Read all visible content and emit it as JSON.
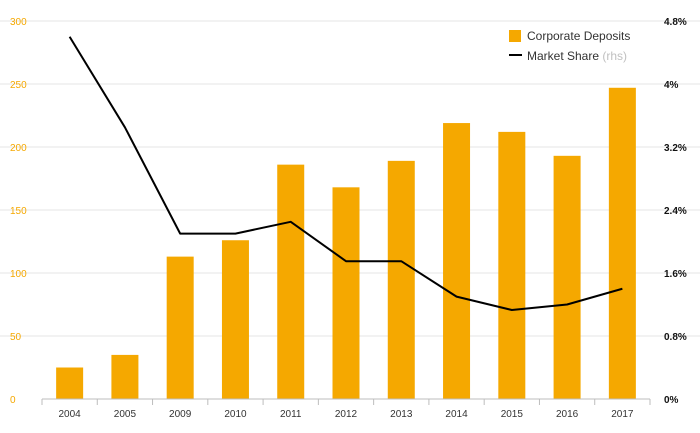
{
  "chart_data": {
    "type": "bar",
    "categories": [
      "2004",
      "2005",
      "2009",
      "2010",
      "2011",
      "2012",
      "2013",
      "2014",
      "2015",
      "2016",
      "2017"
    ],
    "series": [
      {
        "name": "Corporate Deposits",
        "type": "bar",
        "axis": "left",
        "values": [
          25,
          35,
          113,
          126,
          186,
          168,
          189,
          219,
          212,
          193,
          247
        ]
      },
      {
        "name": "Market Share",
        "name_note": "(rhs)",
        "type": "line",
        "axis": "right",
        "values": [
          4.6,
          3.45,
          2.1,
          2.1,
          2.25,
          1.75,
          1.75,
          1.3,
          1.13,
          1.2,
          1.4
        ]
      }
    ],
    "y_left": {
      "lim": [
        0,
        300
      ],
      "ticks": [
        0,
        50,
        100,
        150,
        200,
        250,
        300
      ],
      "tick_labels": [
        "0",
        "50",
        "100",
        "150",
        "200",
        "250",
        "300"
      ]
    },
    "y_right": {
      "lim": [
        0,
        4.8
      ],
      "ticks": [
        0,
        0.8,
        1.6,
        2.4,
        3.2,
        4,
        4.8
      ],
      "tick_labels": [
        "0%",
        "0.8%",
        "1.6%",
        "2.4%",
        "3.2%",
        "4%",
        "4.8%"
      ]
    },
    "grid": true,
    "legend_position": "top-right",
    "colors": {
      "bars": "#F5A800",
      "line": "#000000",
      "grid": "#e6e6e6",
      "left_ticks": "#F5A800",
      "right_ticks": "#111111"
    }
  }
}
